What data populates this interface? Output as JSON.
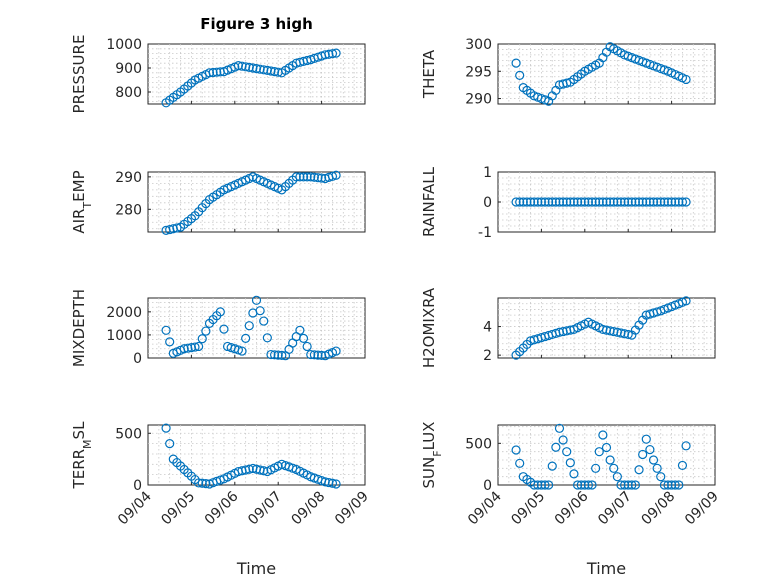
{
  "figure": {
    "title": "Figure 3 high",
    "marker_color": "#0072BD",
    "grid": true
  },
  "chart_data": [
    {
      "type": "scatter",
      "ylabel": "PRESSURE",
      "ylim": [
        750,
        1000
      ],
      "yticks": [
        800,
        900,
        1000
      ],
      "x": [
        "09/04 10:00",
        "09/04 18:00",
        "09/05 02:00",
        "09/05 10:00",
        "09/05 18:00",
        "09/06 02:00",
        "09/06 10:00",
        "09/06 18:00",
        "09/07 02:00",
        "09/07 10:00",
        "09/07 18:00",
        "09/08 02:00",
        "09/08 08:00"
      ],
      "y": [
        755,
        800,
        850,
        880,
        885,
        910,
        900,
        890,
        880,
        920,
        935,
        955,
        962
      ]
    },
    {
      "type": "scatter",
      "ylabel": "THETA",
      "ylim": [
        289,
        300
      ],
      "yticks": [
        290,
        295,
        300
      ],
      "x": [
        "09/04 10:00",
        "09/04 14:00",
        "09/04 20:00",
        "09/05 04:00",
        "09/05 10:00",
        "09/05 16:00",
        "09/06 00:00",
        "09/06 08:00",
        "09/06 14:00",
        "09/06 22:00",
        "09/07 06:00",
        "09/07 14:00",
        "09/07 22:00",
        "09/08 08:00"
      ],
      "y": [
        296.5,
        292,
        290.5,
        289.5,
        292.5,
        293,
        295,
        296.5,
        299.5,
        298,
        297,
        296,
        295,
        293.5
      ]
    },
    {
      "type": "scatter",
      "ylabel": "AIR_TEMP",
      "ylim": [
        273,
        291.5
      ],
      "yticks": [
        280,
        290
      ],
      "x": [
        "09/04 10:00",
        "09/04 18:00",
        "09/05 02:00",
        "09/05 10:00",
        "09/05 18:00",
        "09/06 02:00",
        "09/06 10:00",
        "09/06 18:00",
        "09/07 02:00",
        "09/07 10:00",
        "09/07 18:00",
        "09/08 02:00",
        "09/08 08:00"
      ],
      "y": [
        273.5,
        274.5,
        278,
        283,
        286,
        288,
        290,
        288,
        286,
        290,
        290,
        289.5,
        290.5
      ]
    },
    {
      "type": "scatter",
      "ylabel": "RAINFALL",
      "ylim": [
        -1,
        1
      ],
      "yticks": [
        -1,
        0,
        1
      ],
      "x": [
        "09/04 10:00",
        "09/05 10:00",
        "09/06 10:00",
        "09/07 10:00",
        "09/08 08:00"
      ],
      "y": [
        0,
        0,
        0,
        0,
        0
      ]
    },
    {
      "type": "scatter",
      "ylabel": "MIXDEPTH",
      "ylim": [
        0,
        2600
      ],
      "yticks": [
        0,
        1000,
        2000
      ],
      "x": [
        "09/04 10:00",
        "09/04 14:00",
        "09/04 20:00",
        "09/05 04:00",
        "09/05 10:00",
        "09/05 16:00",
        "09/05 20:00",
        "09/06 04:00",
        "09/06 12:00",
        "09/06 16:00",
        "09/06 20:00",
        "09/07 04:00",
        "09/07 12:00",
        "09/07 18:00",
        "09/08 02:00",
        "09/08 08:00"
      ],
      "y": [
        1200,
        200,
        400,
        500,
        1500,
        2000,
        500,
        300,
        2500,
        1600,
        150,
        100,
        1200,
        150,
        100,
        300
      ]
    },
    {
      "type": "scatter",
      "ylabel": "H2OMIXRA",
      "ylim": [
        1.8,
        6
      ],
      "yticks": [
        2,
        4
      ],
      "x": [
        "09/04 10:00",
        "09/04 18:00",
        "09/05 02:00",
        "09/05 10:00",
        "09/05 18:00",
        "09/06 02:00",
        "09/06 10:00",
        "09/06 18:00",
        "09/07 02:00",
        "09/07 10:00",
        "09/07 18:00",
        "09/08 02:00",
        "09/08 08:00"
      ],
      "y": [
        2,
        3,
        3.3,
        3.6,
        3.8,
        4.3,
        3.8,
        3.6,
        3.4,
        4.8,
        5.1,
        5.5,
        5.8
      ]
    },
    {
      "type": "scatter",
      "ylabel": "TERR_MSL",
      "ylim": [
        0,
        580
      ],
      "yticks": [
        0,
        500
      ],
      "x": [
        "09/04 10:00",
        "09/04 14:00",
        "09/04 20:00",
        "09/05 04:00",
        "09/05 10:00",
        "09/05 18:00",
        "09/06 02:00",
        "09/06 10:00",
        "09/06 18:00",
        "09/07 02:00",
        "09/07 10:00",
        "09/07 18:00",
        "09/08 02:00",
        "09/08 08:00"
      ],
      "y": [
        550,
        250,
        150,
        20,
        10,
        60,
        130,
        160,
        130,
        200,
        150,
        80,
        30,
        10
      ]
    },
    {
      "type": "scatter",
      "ylabel": "SUN_FLUX",
      "ylim": [
        0,
        720
      ],
      "yticks": [
        0,
        500
      ],
      "x": [
        "09/04 10:00",
        "09/04 14:00",
        "09/04 20:00",
        "09/05 04:00",
        "09/05 10:00",
        "09/05 14:00",
        "09/05 20:00",
        "09/06 04:00",
        "09/06 10:00",
        "09/06 14:00",
        "09/06 20:00",
        "09/07 04:00",
        "09/07 10:00",
        "09/07 14:00",
        "09/07 20:00",
        "09/08 04:00",
        "09/08 08:00"
      ],
      "y": [
        420,
        100,
        0,
        0,
        680,
        400,
        0,
        0,
        600,
        300,
        0,
        0,
        550,
        300,
        0,
        0,
        470
      ]
    }
  ],
  "xaxis": {
    "xlabel": "Time",
    "ticks": [
      "09/04",
      "09/05",
      "09/06",
      "09/07",
      "09/08",
      "09/09"
    ]
  }
}
